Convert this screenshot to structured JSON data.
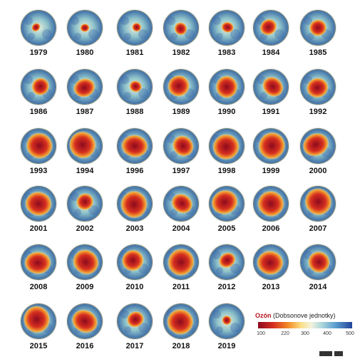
{
  "globes": [
    {
      "year": "1979",
      "hole": "tiny"
    },
    {
      "year": "1980",
      "hole": "tiny"
    },
    {
      "year": "1981",
      "hole": "tiny"
    },
    {
      "year": "1982",
      "hole": "small"
    },
    {
      "year": "1983",
      "hole": "small"
    },
    {
      "year": "1984",
      "hole": "medium"
    },
    {
      "year": "1985",
      "hole": "medium"
    },
    {
      "year": "1986",
      "hole": "medium"
    },
    {
      "year": "1987",
      "hole": "large"
    },
    {
      "year": "1988",
      "hole": "small"
    },
    {
      "year": "1989",
      "hole": "large"
    },
    {
      "year": "1990",
      "hole": "large"
    },
    {
      "year": "1991",
      "hole": "large"
    },
    {
      "year": "1992",
      "hole": "large"
    },
    {
      "year": "1993",
      "hole": "xlarge"
    },
    {
      "year": "1994",
      "hole": "xlarge"
    },
    {
      "year": "1996",
      "hole": "xlarge"
    },
    {
      "year": "1997",
      "hole": "large"
    },
    {
      "year": "1998",
      "hole": "xlarge"
    },
    {
      "year": "1999",
      "hole": "xlarge"
    },
    {
      "year": "2000",
      "hole": "xlarge"
    },
    {
      "year": "2001",
      "hole": "xlarge"
    },
    {
      "year": "2002",
      "hole": "medium"
    },
    {
      "year": "2003",
      "hole": "xlarge"
    },
    {
      "year": "2004",
      "hole": "large"
    },
    {
      "year": "2005",
      "hole": "xlarge"
    },
    {
      "year": "2006",
      "hole": "xlarge"
    },
    {
      "year": "2007",
      "hole": "xlarge"
    },
    {
      "year": "2008",
      "hole": "xlarge"
    },
    {
      "year": "2009",
      "hole": "xlarge"
    },
    {
      "year": "2010",
      "hole": "large"
    },
    {
      "year": "2011",
      "hole": "xlarge"
    },
    {
      "year": "2012",
      "hole": "medium"
    },
    {
      "year": "2013",
      "hole": "xlarge"
    },
    {
      "year": "2014",
      "hole": "large"
    },
    {
      "year": "2015",
      "hole": "xlarge"
    },
    {
      "year": "2016",
      "hole": "xlarge"
    },
    {
      "year": "2017",
      "hole": "medium"
    },
    {
      "year": "2018",
      "hole": "xlarge"
    },
    {
      "year": "2019",
      "hole": "tiny"
    }
  ],
  "legend": {
    "title_bold": "Ozón",
    "title_rest": " (Dobsonove jednotky)",
    "ticks": [
      "100",
      "220",
      "300",
      "400",
      "500"
    ]
  },
  "colors": {
    "title_accent": "#b5121b",
    "ocean_edge": "#3f6fa8",
    "ocean_mid": "#8ec2c9",
    "hole_core": "#8c0a1e",
    "hole_mid": "#d62f1f",
    "hole_edge": "#f5a532"
  }
}
